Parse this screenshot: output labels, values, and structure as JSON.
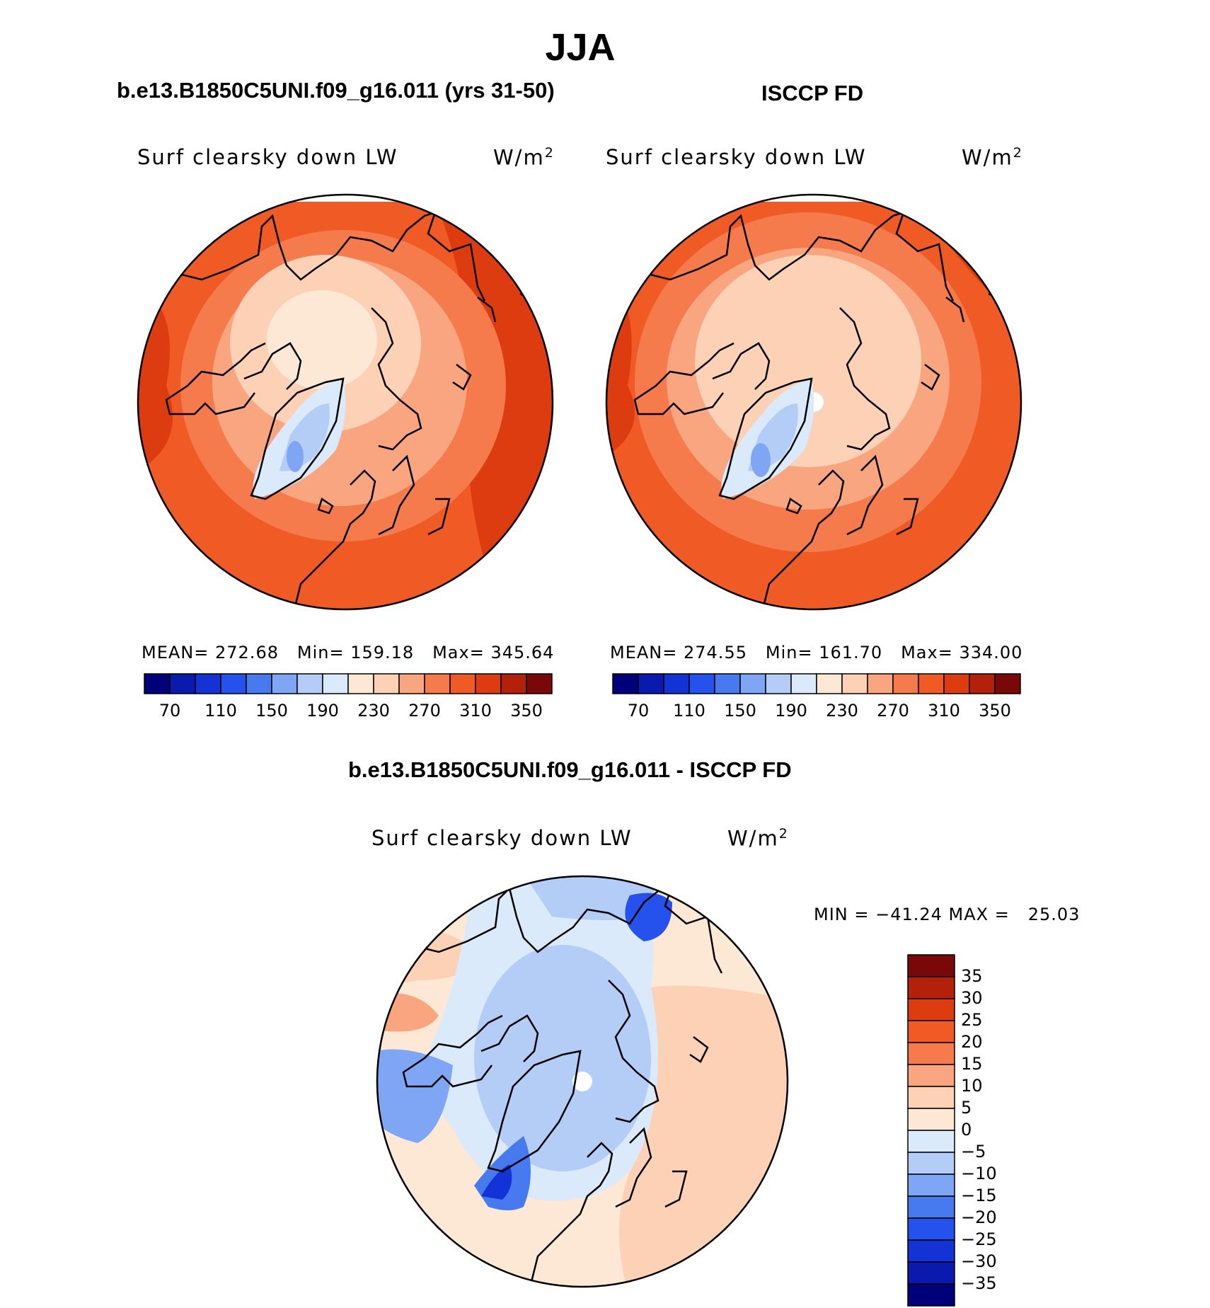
{
  "figure": {
    "title": "JJA"
  },
  "panels": [
    {
      "title": "b.e13.B1850C5UNI.f09_g16.011 (yrs 31-50)",
      "variable": "Surf clearsky down LW",
      "units": "W/m",
      "units_sup": "2",
      "mean_label": "MEAN=",
      "mean": "272.68",
      "min_label": "Min=",
      "min": "159.18",
      "max_label": "Max=",
      "max": "345.64"
    },
    {
      "title": "ISCCP FD",
      "variable": "Surf clearsky down LW",
      "units": "W/m",
      "units_sup": "2",
      "mean_label": "MEAN=",
      "mean": "274.55",
      "min_label": "Min=",
      "min": "161.70",
      "max_label": "Max=",
      "max": "334.00"
    }
  ],
  "diff_panel": {
    "title": "b.e13.B1850C5UNI.f09_g16.011 - ISCCP FD",
    "variable": "Surf clearsky down LW",
    "units": "W/m",
    "units_sup": "2",
    "minmax": "MIN = −41.24 MAX =   25.03"
  },
  "colorbar_abs": {
    "colors": [
      "#00007a",
      "#0a1aae",
      "#1333d6",
      "#2552ec",
      "#4779ef",
      "#7ea6f4",
      "#b4cdf7",
      "#daeafb",
      "#fde8d6",
      "#fcd1b5",
      "#f9a580",
      "#f57a4c",
      "#f05a24",
      "#dc3c10",
      "#b3210b",
      "#7a0808"
    ],
    "tick_labels": [
      "70",
      "110",
      "150",
      "190",
      "230",
      "270",
      "310",
      "350"
    ]
  },
  "colorbar_diff": {
    "colors": [
      "#7a0808",
      "#b3210b",
      "#dc3c10",
      "#f05a24",
      "#f57a4c",
      "#f9a580",
      "#fcd1b5",
      "#fde8d6",
      "#daeafb",
      "#b4cdf7",
      "#7ea6f4",
      "#4779ef",
      "#2552ec",
      "#1333d6",
      "#0a1aae",
      "#00007a"
    ],
    "tick_labels": [
      "35",
      "30",
      "25",
      "20",
      "15",
      "10",
      "5",
      "0",
      "−5",
      "−10",
      "−15",
      "−20",
      "−25",
      "−30",
      "−35"
    ]
  }
}
